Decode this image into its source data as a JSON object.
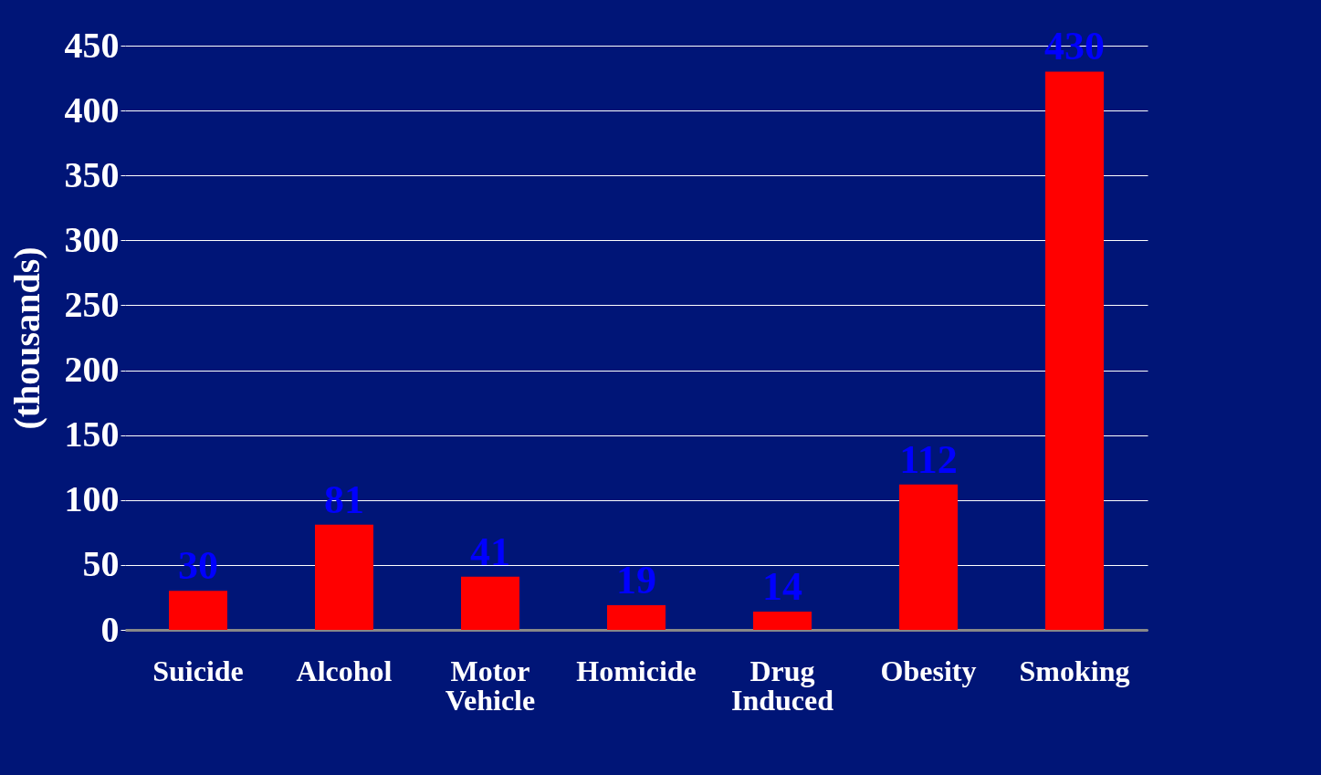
{
  "chart_data": {
    "type": "bar",
    "ylabel": "(thousands)",
    "categories": [
      "Suicide",
      "Alcohol",
      "Motor Vehicle",
      "Homicide",
      "Drug Induced",
      "Obesity",
      "Smoking"
    ],
    "values": [
      30,
      81,
      41,
      19,
      14,
      112,
      430
    ],
    "color": "#ff0000",
    "ylim": [
      0,
      450
    ],
    "yticks": [
      0,
      50,
      100,
      150,
      200,
      250,
      300,
      350,
      400,
      450
    ],
    "grid": "y",
    "data_labels": true
  }
}
